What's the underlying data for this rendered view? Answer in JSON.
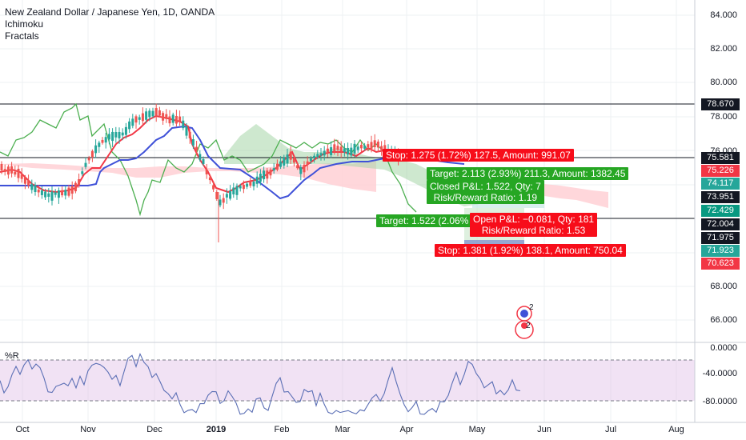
{
  "legend": {
    "title": "New Zealand Dollar / Japanese Yen, 1D, OANDA",
    "indicator_1": "Ichimoku",
    "indicator_2": "Fractals"
  },
  "oscillator": {
    "label": "%R"
  },
  "price_axis": {
    "ticks": [
      "84.000",
      "82.000",
      "80.000",
      "78.000",
      "76.000",
      "68.000",
      "66.000"
    ],
    "labels": [
      {
        "text": "78.670",
        "style": "dark"
      },
      {
        "text": "75.581",
        "style": "dark"
      },
      {
        "text": "75.226",
        "style": "red"
      },
      {
        "text": "74.117",
        "style": "green"
      },
      {
        "text": "73.951",
        "style": "dark"
      },
      {
        "text": "72.429",
        "style": "green2"
      },
      {
        "text": "72.004",
        "style": "dark"
      },
      {
        "text": "71.975",
        "style": "dark"
      },
      {
        "text": "71.923",
        "style": "green"
      },
      {
        "text": "70.623",
        "style": "red"
      }
    ]
  },
  "osc_axis": {
    "ticks": [
      "0.0000",
      "-40.0000",
      "-80.0000"
    ]
  },
  "time_axis": {
    "ticks": [
      "Oct",
      "Nov",
      "Dec",
      "2019",
      "Feb",
      "Mar",
      "Apr",
      "May",
      "Jun",
      "Jul",
      "Aug"
    ]
  },
  "trades": {
    "stop_1": "Stop: 1.275 (1.72%) 127.5, Amount: 991.07",
    "target_1": "Target: 2.113 (2.93%) 211.3, Amount: 1382.45",
    "closed_pnl": "Closed P&L: 1.522, Qty: 7",
    "rr_1": "Risk/Reward Ratio: 1.19",
    "target_2": "Target: 1.522 (2.06%",
    "open_pnl": "Open P&L: −0.081, Qty: 181",
    "rr_2": "Risk/Reward Ratio: 1.53",
    "stop_2": "Stop: 1.381 (1.92%) 138.1, Amount: 750.04"
  },
  "markers": {
    "marker_1": "2",
    "marker_2": "2"
  },
  "colors": {
    "candle_up": "#26a69a",
    "candle_down": "#ef5350",
    "tenkan": "#f23645",
    "kijun": "#3f51d8",
    "chikou": "#4caf50",
    "cloud_up": "#a5d6a7",
    "cloud_down": "#ffcdd2",
    "osc_fill": "#e1bee7",
    "osc_line": "#5b6fb5"
  }
}
